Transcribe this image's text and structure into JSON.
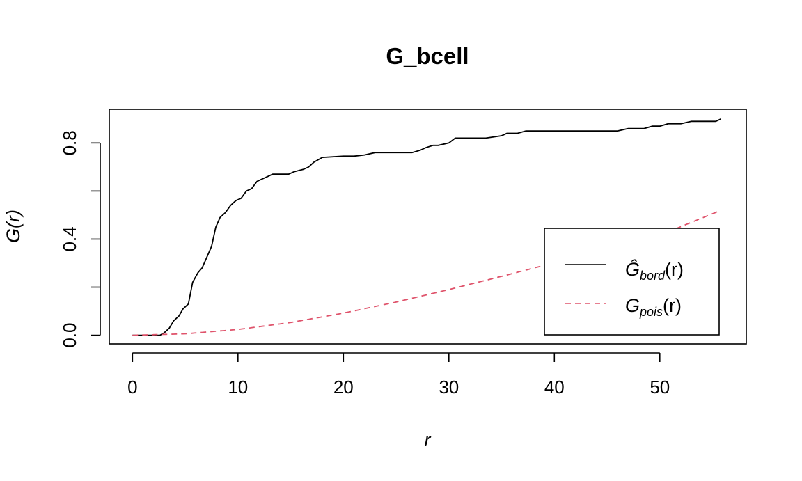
{
  "chart_data": {
    "type": "line",
    "title": "G_bcell",
    "xlabel": "r",
    "ylabel": "G(r)",
    "xlim": [
      -2.2,
      58.2
    ],
    "ylim": [
      -0.036,
      0.94
    ],
    "x_ticks": [
      0,
      10,
      20,
      30,
      40,
      50
    ],
    "x_tick_labels": [
      "0",
      "10",
      "20",
      "30",
      "40",
      "50"
    ],
    "y_ticks": [
      0.0,
      0.2,
      0.4,
      0.6,
      0.8
    ],
    "y_tick_labels": [
      "0.0",
      "",
      "0.4",
      "",
      "0.8"
    ],
    "legend_position": "bottom-right",
    "grid": false,
    "series": [
      {
        "name": "Ĝbord(r)",
        "legend_main": "Ĝ",
        "legend_sub": "bord",
        "legend_tail": "(r)",
        "color": "#000000",
        "dash": "solid",
        "x": [
          0,
          2.6,
          3.0,
          3.5,
          3.9,
          4.4,
          4.8,
          5.3,
          5.7,
          6.2,
          6.6,
          7.0,
          7.5,
          7.9,
          8.3,
          8.8,
          9.3,
          9.8,
          10.3,
          10.8,
          11.3,
          11.8,
          12.3,
          12.8,
          13.3,
          14.0,
          14.8,
          15.3,
          16.2,
          16.7,
          17.2,
          18.0,
          20.0,
          21.0,
          22.0,
          23.0,
          25.0,
          26.5,
          27.3,
          27.8,
          28.5,
          29.0,
          30.0,
          30.6,
          32.0,
          33.5,
          35.0,
          35.5,
          36.5,
          37.3,
          38.5,
          40.0,
          42.0,
          44.0,
          46.0,
          47.0,
          48.5,
          49.3,
          50.0,
          50.8,
          51.5,
          52.0,
          53.0,
          54.0,
          55.3,
          55.8
        ],
        "y": [
          0,
          0,
          0.01,
          0.03,
          0.06,
          0.08,
          0.11,
          0.13,
          0.22,
          0.26,
          0.28,
          0.32,
          0.37,
          0.45,
          0.49,
          0.51,
          0.54,
          0.56,
          0.57,
          0.6,
          0.61,
          0.64,
          0.65,
          0.66,
          0.67,
          0.67,
          0.67,
          0.68,
          0.69,
          0.7,
          0.72,
          0.74,
          0.745,
          0.745,
          0.75,
          0.76,
          0.76,
          0.76,
          0.77,
          0.78,
          0.79,
          0.79,
          0.8,
          0.82,
          0.82,
          0.82,
          0.83,
          0.84,
          0.84,
          0.85,
          0.85,
          0.85,
          0.85,
          0.85,
          0.85,
          0.86,
          0.86,
          0.87,
          0.87,
          0.88,
          0.88,
          0.88,
          0.89,
          0.89,
          0.89,
          0.9
        ]
      },
      {
        "name": "Gpois(r)",
        "legend_main": "G",
        "legend_sub": "pois",
        "legend_tail": "(r)",
        "color": "#DF536B",
        "dash": "dashed",
        "x": [
          0,
          5,
          10,
          15,
          20,
          25,
          30,
          35,
          40,
          45,
          50,
          55.8
        ],
        "y": [
          0,
          0.006,
          0.024,
          0.053,
          0.092,
          0.138,
          0.19,
          0.245,
          0.302,
          0.359,
          0.416,
          0.52
        ]
      }
    ]
  }
}
